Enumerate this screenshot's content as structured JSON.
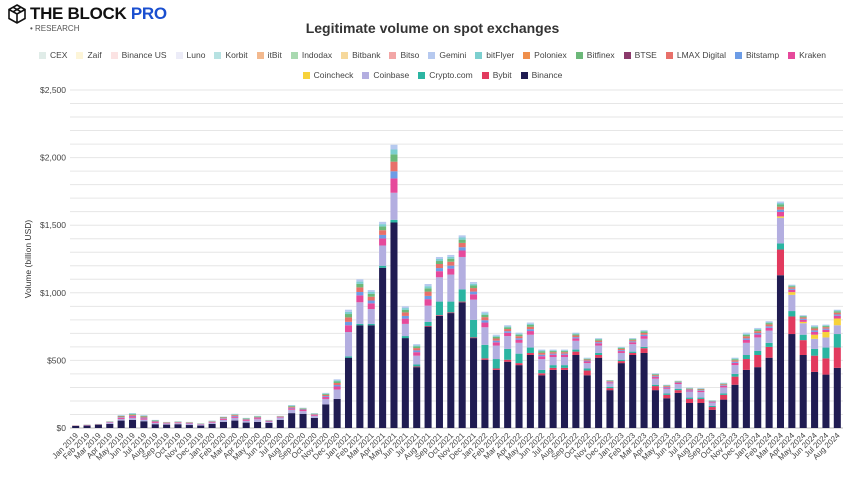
{
  "header": {
    "brand_main": "THE BLOCK ",
    "brand_accent": "PRO",
    "sub": "• RESEARCH"
  },
  "chart_data": {
    "type": "bar",
    "stacked": true,
    "title": "Legitimate volume on spot exchanges",
    "ylabel": "Volume (billion USD)",
    "xlabel": "",
    "ylim": [
      0,
      2500
    ],
    "yticks": [
      "$0",
      "$500",
      "$1,000",
      "$1,500",
      "$2,000",
      "$2,500"
    ],
    "ytick_values": [
      0,
      500,
      1000,
      1500,
      2000,
      2500
    ],
    "grid_step": 100,
    "grid": true,
    "legend_placement": "top",
    "categories": [
      "Jan 2019",
      "Feb 2019",
      "Mar 2019",
      "Apr 2019",
      "May 2019",
      "Jun 2019",
      "Jul 2019",
      "Aug 2019",
      "Sep 2019",
      "Oct 2019",
      "Nov 2019",
      "Dec 2019",
      "Jan 2020",
      "Feb 2020",
      "Mar 2020",
      "Apr 2020",
      "May 2020",
      "Jun 2020",
      "Jul 2020",
      "Aug 2020",
      "Sep 2020",
      "Oct 2020",
      "Nov 2020",
      "Dec 2020",
      "Jan 2021",
      "Feb 2021",
      "Mar 2021",
      "Apr 2021",
      "May 2021",
      "Jun 2021",
      "Jul 2021",
      "Aug 2021",
      "Sep 2021",
      "Oct 2021",
      "Nov 2021",
      "Dec 2021",
      "Jan 2022",
      "Feb 2022",
      "Mar 2022",
      "Apr 2022",
      "May 2022",
      "Jun 2022",
      "Jul 2022",
      "Aug 2022",
      "Sep 2022",
      "Oct 2022",
      "Nov 2022",
      "Dec 2022",
      "Jan 2023",
      "Feb 2023",
      "Mar 2023",
      "Apr 2023",
      "May 2023",
      "Jun 2023",
      "Jul 2023",
      "Aug 2023",
      "Sep 2023",
      "Oct 2023",
      "Nov 2023",
      "Dec 2023",
      "Jan 2024",
      "Feb 2024",
      "Mar 2024",
      "Apr 2024",
      "May 2024",
      "Jun 2024",
      "Jul 2024",
      "Aug 2024"
    ],
    "legend": [
      {
        "name": "CEX",
        "color": "#e0ece8"
      },
      {
        "name": "Zaif",
        "color": "#fdf5d8"
      },
      {
        "name": "Binance US",
        "color": "#fbe3e3"
      },
      {
        "name": "Luno",
        "color": "#ececf8"
      },
      {
        "name": "Korbit",
        "color": "#b7e2e2"
      },
      {
        "name": "itBit",
        "color": "#f3b98e"
      },
      {
        "name": "Indodax",
        "color": "#a9d9b0"
      },
      {
        "name": "Bitbank",
        "color": "#f6d89b"
      },
      {
        "name": "Bitso",
        "color": "#f2a6a6"
      },
      {
        "name": "Gemini",
        "color": "#b6c9ef"
      },
      {
        "name": "bitFlyer",
        "color": "#7ccfcf"
      },
      {
        "name": "Poloniex",
        "color": "#ef8f4c"
      },
      {
        "name": "Bitfinex",
        "color": "#6cb879"
      },
      {
        "name": "BTSE",
        "color": "#8b3a6b"
      },
      {
        "name": "LMAX Digital",
        "color": "#e8706a"
      },
      {
        "name": "Bitstamp",
        "color": "#6c9ce6"
      },
      {
        "name": "Kraken",
        "color": "#e6499b"
      },
      {
        "name": "Coincheck",
        "color": "#f7d23a"
      },
      {
        "name": "Coinbase",
        "color": "#b3aee0"
      },
      {
        "name": "Crypto.com",
        "color": "#2bb5a2"
      },
      {
        "name": "Bybit",
        "color": "#e23a5e"
      },
      {
        "name": "Binance",
        "color": "#201c52"
      }
    ],
    "series": [
      {
        "name": "Binance",
        "color": "#201c52",
        "values": [
          15,
          18,
          25,
          30,
          55,
          60,
          50,
          28,
          25,
          28,
          22,
          18,
          30,
          45,
          55,
          40,
          45,
          38,
          60,
          110,
          105,
          75,
          175,
          215,
          520,
          760,
          760,
          1185,
          1520,
          665,
          450,
          750,
          830,
          850,
          930,
          665,
          505,
          430,
          490,
          465,
          540,
          390,
          430,
          430,
          540,
          390,
          520,
          280,
          480,
          540,
          555,
          280,
          220,
          260,
          185,
          185,
          135,
          210,
          320,
          430,
          450,
          520,
          1130,
          695,
          540,
          415,
          395,
          445
        ]
      },
      {
        "name": "Bybit",
        "color": "#e23a5e",
        "values": [
          0,
          0,
          0,
          0,
          0,
          0,
          0,
          0,
          0,
          0,
          0,
          0,
          0,
          0,
          0,
          0,
          0,
          0,
          0,
          0,
          0,
          0,
          0,
          0,
          0,
          0,
          0,
          0,
          0,
          0,
          5,
          5,
          5,
          5,
          5,
          5,
          10,
          10,
          15,
          15,
          15,
          15,
          15,
          15,
          25,
          35,
          20,
          15,
          15,
          15,
          35,
          30,
          25,
          20,
          30,
          30,
          20,
          35,
          60,
          80,
          90,
          80,
          190,
          130,
          110,
          120,
          120,
          150
        ]
      },
      {
        "name": "Crypto.com",
        "color": "#2bb5a2",
        "values": [
          0,
          0,
          0,
          0,
          0,
          0,
          0,
          0,
          0,
          0,
          0,
          0,
          0,
          0,
          0,
          0,
          0,
          0,
          0,
          0,
          0,
          0,
          0,
          0,
          10,
          10,
          10,
          15,
          20,
          15,
          15,
          30,
          100,
          80,
          90,
          130,
          100,
          70,
          80,
          70,
          40,
          25,
          20,
          20,
          15,
          15,
          15,
          10,
          10,
          10,
          10,
          10,
          10,
          10,
          10,
          10,
          8,
          10,
          20,
          30,
          30,
          30,
          45,
          40,
          40,
          50,
          80,
          100
        ]
      },
      {
        "name": "Coinbase",
        "color": "#b3aee0",
        "values": [
          2,
          2,
          2,
          8,
          12,
          15,
          12,
          10,
          7,
          8,
          8,
          6,
          10,
          15,
          20,
          13,
          20,
          10,
          15,
          25,
          20,
          15,
          40,
          70,
          180,
          160,
          110,
          150,
          200,
          90,
          65,
          120,
          180,
          200,
          240,
          150,
          130,
          100,
          95,
          80,
          95,
          80,
          60,
          60,
          65,
          40,
          55,
          25,
          50,
          55,
          60,
          45,
          35,
          35,
          45,
          40,
          25,
          45,
          65,
          90,
          100,
          90,
          190,
          120,
          85,
          75,
          75,
          65
        ]
      },
      {
        "name": "Coincheck",
        "color": "#f7d23a",
        "values": [
          0,
          0,
          0,
          0,
          0,
          0,
          0,
          0,
          0,
          0,
          0,
          0,
          0,
          0,
          0,
          0,
          0,
          0,
          0,
          0,
          0,
          0,
          0,
          0,
          0,
          0,
          0,
          0,
          0,
          0,
          0,
          0,
          0,
          0,
          0,
          0,
          0,
          0,
          0,
          0,
          0,
          0,
          0,
          0,
          0,
          0,
          0,
          0,
          0,
          0,
          0,
          0,
          0,
          0,
          0,
          0,
          0,
          0,
          0,
          0,
          0,
          0,
          10,
          20,
          10,
          30,
          40,
          50
        ]
      },
      {
        "name": "Kraken",
        "color": "#e6499b",
        "values": [
          1,
          2,
          1,
          4,
          8,
          10,
          10,
          7,
          4,
          4,
          5,
          3,
          5,
          8,
          9,
          7,
          8,
          4,
          5,
          10,
          8,
          6,
          14,
          22,
          50,
          51,
          42,
          52,
          106,
          39,
          26,
          48,
          45,
          44,
          48,
          39,
          35,
          24,
          24,
          23,
          27,
          21,
          17,
          17,
          18,
          12,
          17,
          8,
          14,
          14,
          20,
          12,
          9,
          8,
          9,
          9,
          5,
          11,
          17,
          22,
          21,
          21,
          33,
          17,
          15,
          21,
          17,
          20
        ]
      },
      {
        "name": "Bitstamp",
        "color": "#6c9ce6",
        "values": [
          0,
          1,
          0,
          2,
          4,
          5,
          5,
          3,
          2,
          2,
          2,
          2,
          2,
          4,
          5,
          3,
          4,
          2,
          2,
          5,
          4,
          3,
          7,
          11,
          25,
          25,
          21,
          26,
          53,
          20,
          13,
          24,
          23,
          22,
          24,
          20,
          17,
          12,
          12,
          11,
          14,
          11,
          8,
          8,
          9,
          6,
          8,
          4,
          7,
          7,
          10,
          6,
          5,
          4,
          5,
          5,
          3,
          5,
          8,
          11,
          11,
          11,
          17,
          8,
          8,
          11,
          8,
          10
        ]
      },
      {
        "name": "LMAX Digital",
        "color": "#e8706a",
        "values": [
          1,
          1,
          1,
          2,
          6,
          7,
          7,
          4,
          3,
          3,
          3,
          2,
          3,
          5,
          6,
          4,
          5,
          2,
          3,
          7,
          5,
          4,
          9,
          15,
          33,
          34,
          28,
          35,
          71,
          26,
          17,
          32,
          30,
          29,
          32,
          26,
          23,
          16,
          16,
          15,
          18,
          14,
          11,
          11,
          12,
          8,
          11,
          5,
          9,
          9,
          13,
          8,
          6,
          5,
          6,
          6,
          3,
          7,
          11,
          15,
          14,
          14,
          22,
          11,
          10,
          14,
          11,
          13
        ]
      },
      {
        "name": "Bitfinex",
        "color": "#6cb879",
        "values": [
          1,
          1,
          1,
          2,
          4,
          6,
          5,
          4,
          2,
          2,
          2,
          2,
          2,
          4,
          4,
          4,
          4,
          2,
          2,
          6,
          4,
          3,
          7,
          11,
          25,
          26,
          21,
          27,
          54,
          19,
          12,
          24,
          22,
          22,
          24,
          19,
          17,
          12,
          12,
          11,
          13,
          10,
          8,
          8,
          9,
          6,
          8,
          4,
          7,
          7,
          10,
          6,
          4,
          4,
          4,
          4,
          3,
          5,
          8,
          11,
          10,
          10,
          16,
          8,
          7,
          10,
          8,
          10
        ]
      },
      {
        "name": "bitFlyer",
        "color": "#7ccfcf",
        "values": [
          0,
          0,
          0,
          1,
          3,
          4,
          3,
          2,
          1,
          2,
          2,
          1,
          2,
          2,
          3,
          2,
          2,
          1,
          2,
          4,
          2,
          2,
          4,
          8,
          16,
          17,
          14,
          18,
          36,
          13,
          9,
          16,
          15,
          14,
          16,
          13,
          12,
          8,
          8,
          8,
          9,
          7,
          6,
          6,
          6,
          4,
          6,
          2,
          4,
          4,
          6,
          4,
          3,
          2,
          3,
          3,
          2,
          4,
          6,
          8,
          7,
          7,
          11,
          6,
          5,
          7,
          6,
          6
        ]
      },
      {
        "name": "Gemini",
        "color": "#b6c9ef",
        "values": [
          0,
          0,
          0,
          1,
          3,
          3,
          3,
          2,
          1,
          1,
          1,
          1,
          1,
          2,
          3,
          2,
          2,
          1,
          1,
          3,
          2,
          2,
          4,
          8,
          16,
          17,
          14,
          17,
          35,
          13,
          8,
          16,
          15,
          14,
          16,
          13,
          11,
          8,
          8,
          7,
          9,
          7,
          5,
          5,
          6,
          4,
          5,
          2,
          4,
          4,
          6,
          4,
          3,
          2,
          3,
          3,
          1,
          3,
          5,
          8,
          7,
          7,
          11,
          5,
          5,
          7,
          5,
          6
        ]
      }
    ]
  }
}
